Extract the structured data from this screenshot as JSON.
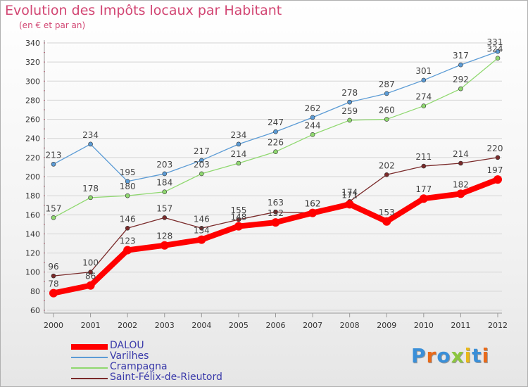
{
  "header": {
    "title": "Evolution des Impôts locaux par Habitant",
    "subtitle": "(en € et par an)"
  },
  "logo": {
    "text": "Proxiti",
    "colors": [
      "#3a8fd8",
      "#e86a1a",
      "#3a8fd8",
      "#8cc63f",
      "#e8b81a",
      "#3a8fd8",
      "#e86a1a"
    ]
  },
  "chart_data": {
    "type": "line",
    "x": [
      "2000",
      "2001",
      "2002",
      "2003",
      "2004",
      "2005",
      "2006",
      "2007",
      "2008",
      "2009",
      "2010",
      "2011",
      "2012"
    ],
    "ylim": [
      60,
      340
    ],
    "yticks": [
      60,
      80,
      100,
      120,
      140,
      160,
      180,
      200,
      220,
      240,
      260,
      280,
      300,
      320,
      340
    ],
    "grid": "horizontal",
    "legend_position": "bottom-left",
    "series": [
      {
        "name": "DALOU",
        "color": "#ff0000",
        "values": [
          78,
          86,
          123,
          128,
          134,
          148,
          152,
          162,
          171,
          153,
          177,
          182,
          197
        ]
      },
      {
        "name": "Varilhes",
        "color": "#5b9bd5",
        "values": [
          213,
          234,
          195,
          203,
          217,
          234,
          247,
          262,
          278,
          287,
          301,
          317,
          331
        ]
      },
      {
        "name": "Crampagna",
        "color": "#8fd86f",
        "values": [
          157,
          178,
          180,
          184,
          203,
          214,
          226,
          244,
          259,
          260,
          274,
          292,
          324
        ]
      },
      {
        "name": "Saint-Félix-de-Rieutord",
        "color": "#7a2a2a",
        "values": [
          96,
          100,
          146,
          157,
          146,
          155,
          163,
          162,
          174,
          202,
          211,
          214,
          220
        ]
      }
    ]
  }
}
